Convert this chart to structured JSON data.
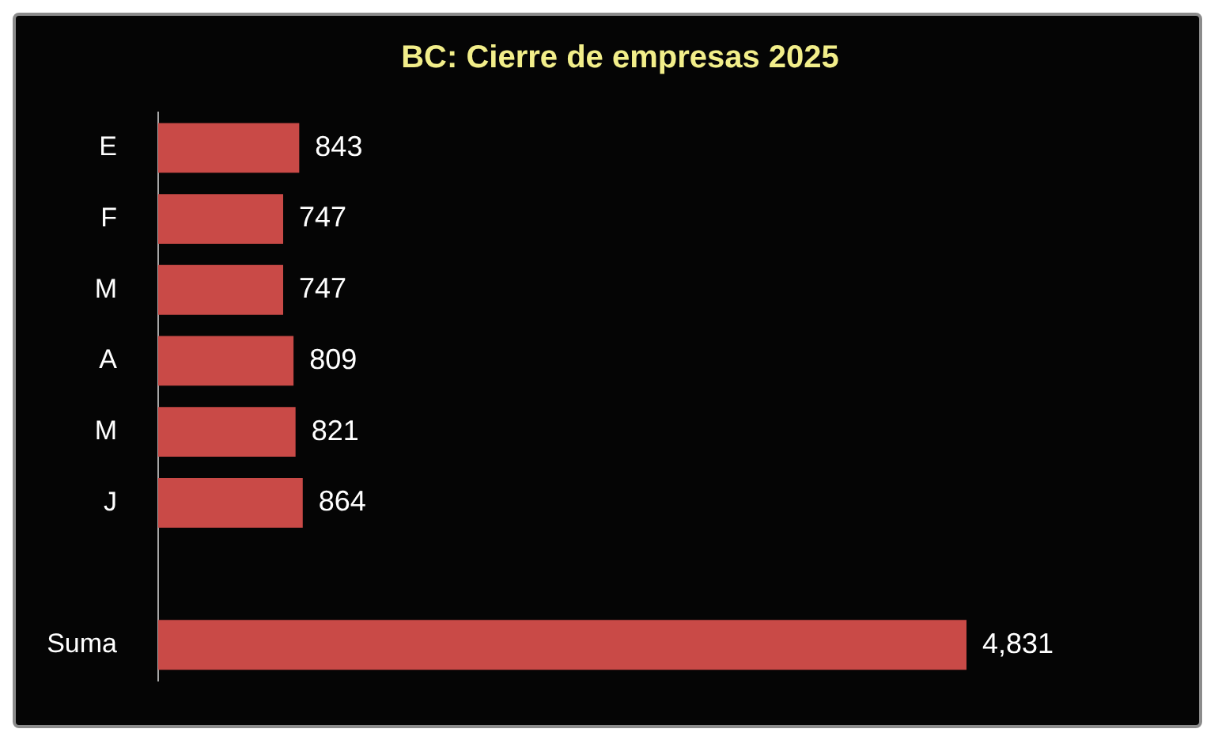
{
  "chart_data": {
    "type": "bar",
    "title": "BC: Cierre de empresas 2025",
    "orientation": "horizontal",
    "categories": [
      "E",
      "F",
      "M",
      "A",
      "M",
      "J",
      null,
      "Suma"
    ],
    "values": [
      843,
      747,
      747,
      809,
      821,
      864,
      null,
      4831
    ],
    "color": "#c94a47",
    "value_labels": [
      "843",
      "747",
      "747",
      "809",
      "821",
      "864",
      null,
      "4,831"
    ],
    "tick_labels": "y",
    "grid": false,
    "legend": false
  }
}
